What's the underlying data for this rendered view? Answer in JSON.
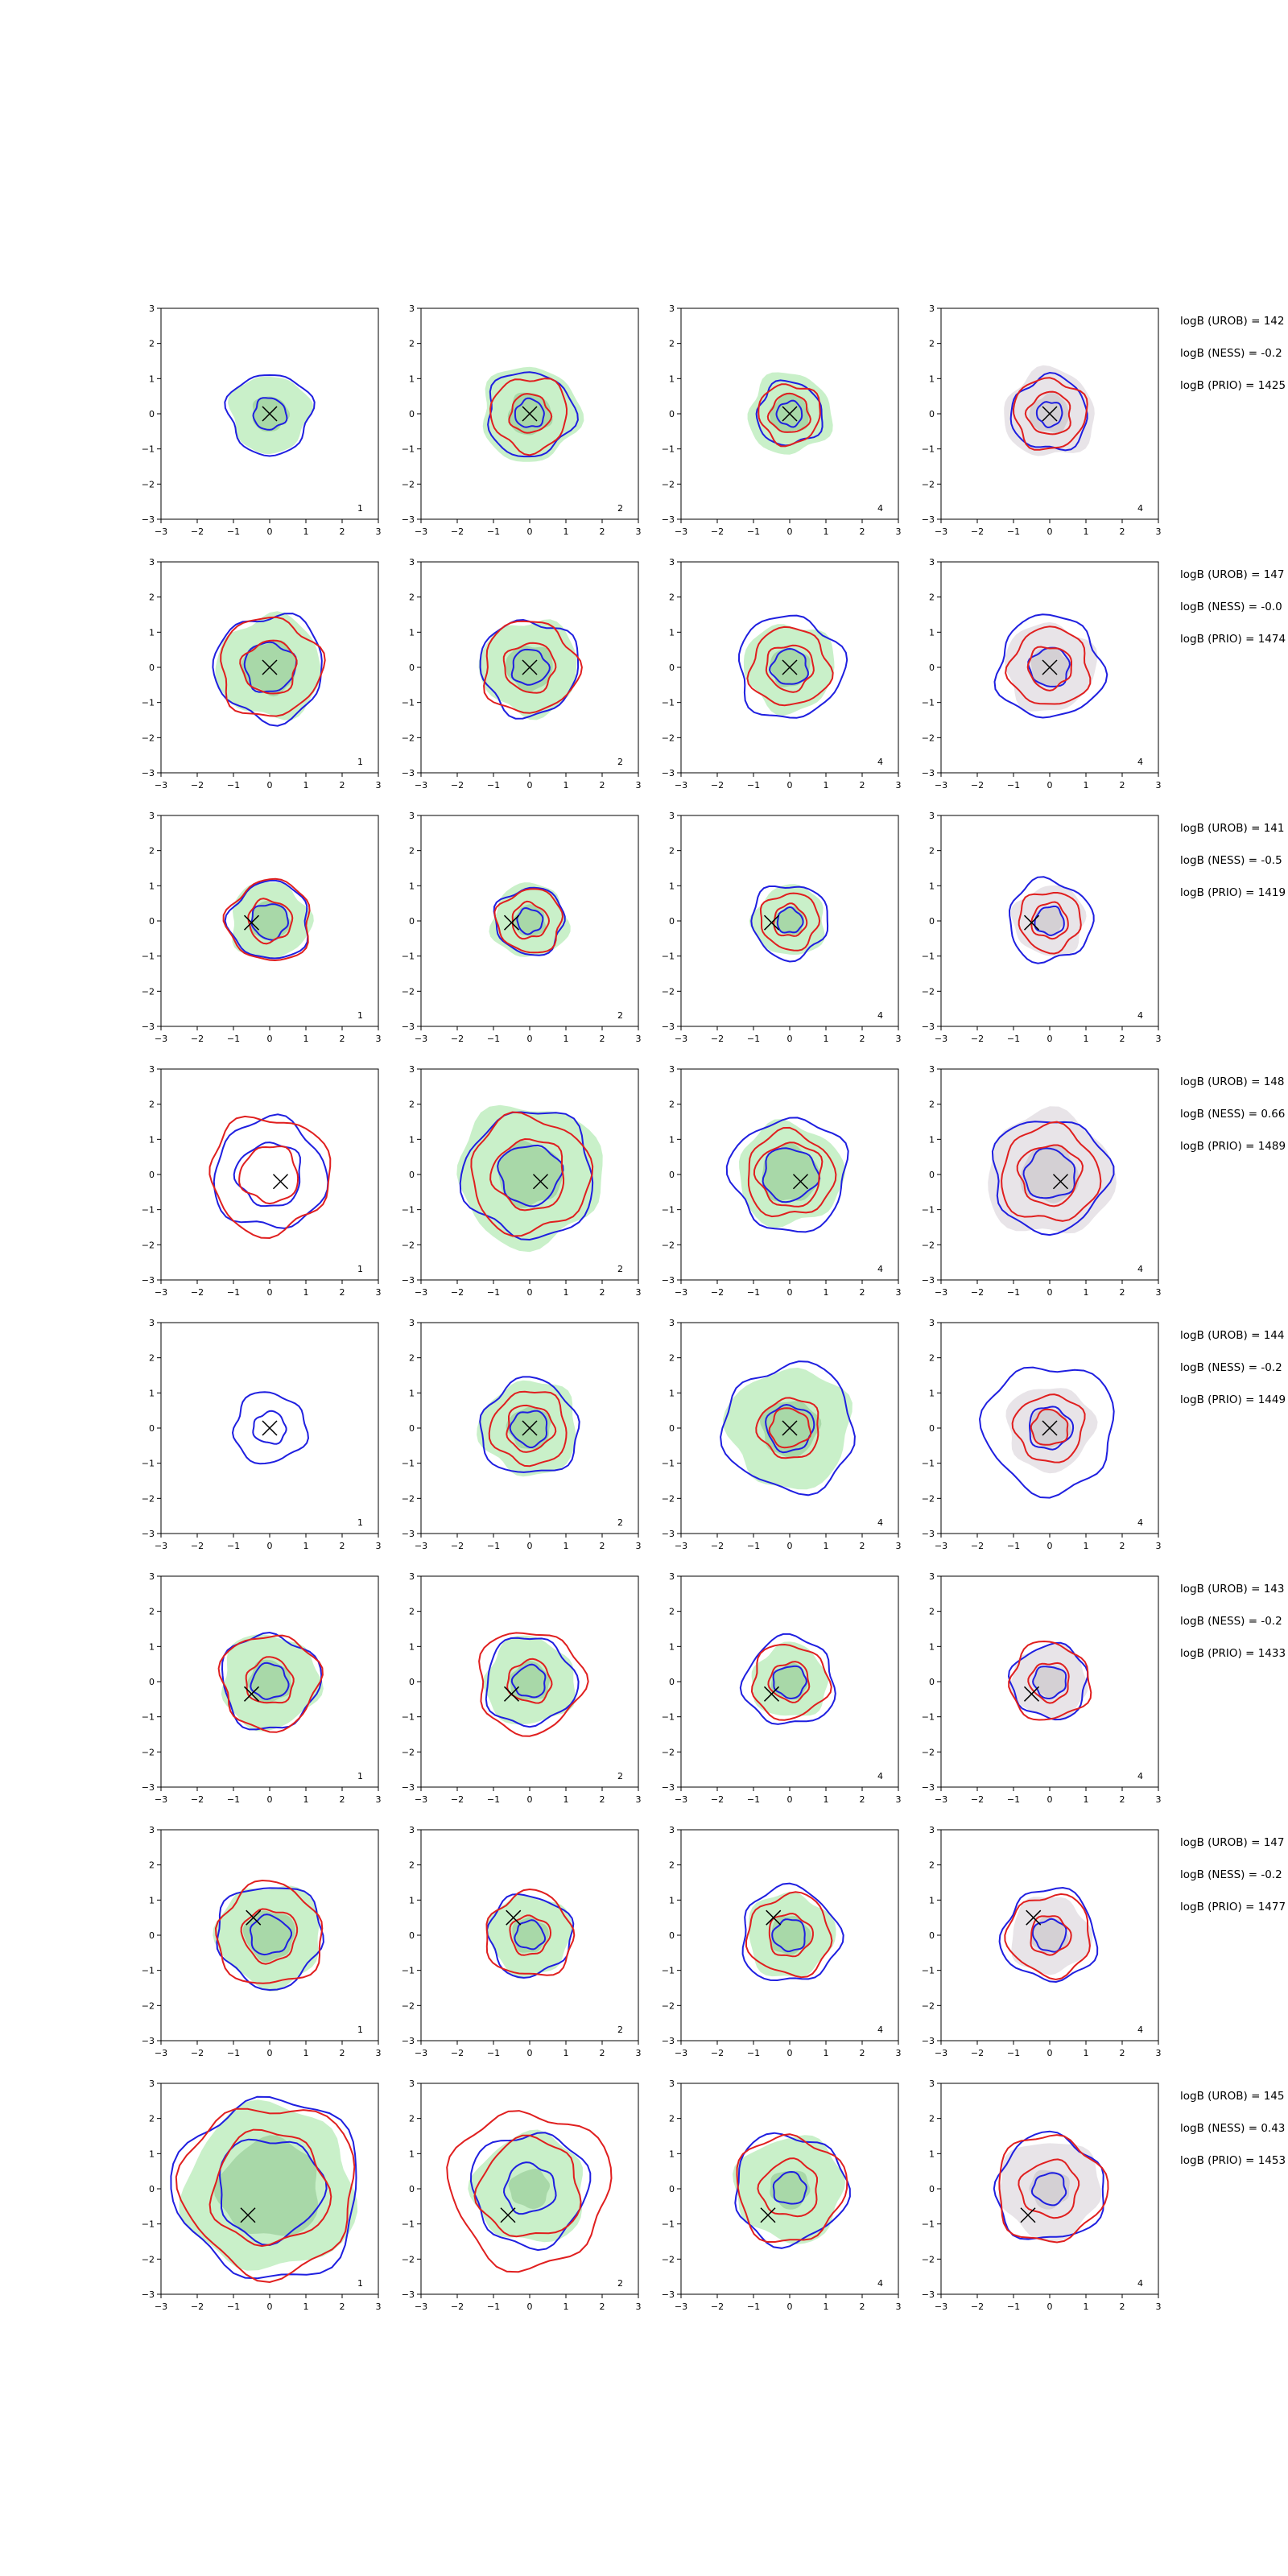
{
  "figure": {
    "grid_rows": 8,
    "grid_cols": 4,
    "colors": {
      "blue_contour": "#1f1fe0",
      "red_contour": "#e01f1f",
      "green_fill": "#c9f0c9",
      "green_fill_dark": "#a8d8a8",
      "gray_fill": "#e8e4e8",
      "gray_fill_dark": "#d4d0d4",
      "marker": "#000000"
    }
  },
  "chart_data": {
    "type": "contour",
    "xlim": [
      -3,
      3
    ],
    "ylim": [
      -3,
      3
    ],
    "x_ticks": [
      "−3",
      "−2",
      "−1",
      "0",
      "1",
      "2",
      "3"
    ],
    "y_ticks": [
      "3",
      "2",
      "1",
      "0",
      "−1",
      "−2",
      "−3"
    ],
    "column_labels": [
      "1",
      "2",
      "4",
      "4"
    ],
    "column_fill": [
      "green",
      "green",
      "green",
      "gray"
    ],
    "rows": [
      {
        "marker": [
          0.0,
          0.0
        ],
        "logB": [
          "logB (UROB) = 142",
          "logB (NESS) = -0.2",
          "logB (PRIO) = 1425"
        ],
        "panels": [
          {
            "fill": [
              1.1,
              0.5
            ],
            "blue": [
              1.15,
              0.45
            ],
            "red": []
          },
          {
            "fill": [
              1.35,
              0.6
            ],
            "blue": [
              1.2,
              0.4
            ],
            "red": [
              1.05,
              0.55
            ]
          },
          {
            "fill": [
              1.15,
              0.55
            ],
            "blue": [
              0.9,
              0.35
            ],
            "red": [
              0.85,
              0.55
            ]
          },
          {
            "fill": [
              1.25,
              0.55
            ],
            "blue": [
              1.05,
              0.35
            ],
            "red": [
              1.0,
              0.6
            ]
          }
        ]
      },
      {
        "marker": [
          0.0,
          0.0
        ],
        "logB": [
          "logB (UROB) = 147",
          "logB (NESS) = -0.0",
          "logB (PRIO) = 1474"
        ],
        "panels": [
          {
            "fill": [
              1.45,
              0.75
            ],
            "blue": [
              1.5,
              0.7
            ],
            "red": [
              1.4,
              0.75
            ]
          },
          {
            "fill": [
              1.35,
              0.65
            ],
            "blue": [
              1.35,
              0.5
            ],
            "red": [
              1.3,
              0.7
            ]
          },
          {
            "fill": [
              1.25,
              0.55
            ],
            "blue": [
              1.45,
              0.5
            ],
            "red": [
              1.1,
              0.65
            ]
          },
          {
            "fill": [
              1.25,
              0.55
            ],
            "blue": [
              1.45,
              0.55
            ],
            "red": [
              1.1,
              0.6
            ]
          }
        ]
      },
      {
        "marker": [
          -0.5,
          -0.05
        ],
        "logB": [
          "logB (UROB) = 141",
          "logB (NESS) = -0.5",
          "logB (PRIO) = 1419"
        ],
        "panels": [
          {
            "fill": [
              1.1,
              0.55
            ],
            "blue": [
              1.1,
              0.5
            ],
            "red": [
              1.15,
              0.6
            ]
          },
          {
            "fill": [
              1.05,
              0.45
            ],
            "blue": [
              0.95,
              0.35
            ],
            "red": [
              0.9,
              0.5
            ]
          },
          {
            "fill": [
              1.0,
              0.4
            ],
            "blue": [
              1.05,
              0.35
            ],
            "red": [
              0.8,
              0.45
            ]
          },
          {
            "fill": [
              1.0,
              0.4
            ],
            "blue": [
              1.15,
              0.4
            ],
            "red": [
              0.85,
              0.5
            ]
          }
        ]
      },
      {
        "marker": [
          0.3,
          -0.2
        ],
        "logB": [
          "logB (UROB) = 148",
          "logB (NESS) = 0.66",
          "logB (PRIO) = 1489"
        ],
        "panels": [
          {
            "fill": [],
            "blue": [
              1.55,
              0.9
            ],
            "red": [
              1.65,
              0.8
            ]
          },
          {
            "fill": [
              2.0,
              0.9
            ],
            "blue": [
              1.8,
              0.85
            ],
            "red": [
              1.65,
              1.0
            ]
          },
          {
            "fill": [
              1.45,
              0.8
            ],
            "blue": [
              1.6,
              0.75
            ],
            "red": [
              1.2,
              0.9
            ]
          },
          {
            "fill": [
              1.75,
              0.8
            ],
            "blue": [
              1.6,
              0.7
            ],
            "red": [
              1.35,
              0.85
            ]
          }
        ]
      },
      {
        "marker": [
          0.0,
          0.0
        ],
        "logB": [
          "logB (UROB) = 144",
          "logB (NESS) = -0.2",
          "logB (PRIO) = 1449"
        ],
        "panels": [
          {
            "fill": [],
            "blue": [
              1.0,
              0.45
            ],
            "red": []
          },
          {
            "fill": [
              1.35,
              0.6
            ],
            "blue": [
              1.35,
              0.5
            ],
            "red": [
              1.05,
              0.65
            ]
          },
          {
            "fill": [
              1.7,
              0.8
            ],
            "blue": [
              1.8,
              0.65
            ],
            "red": [
              0.85,
              0.55
            ]
          },
          {
            "fill": [
              1.2,
              0.55
            ],
            "blue": [
              1.8,
              0.6
            ],
            "red": [
              0.95,
              0.5
            ]
          }
        ]
      },
      {
        "marker": [
          -0.5,
          -0.35
        ],
        "logB": [
          "logB (UROB) = 143",
          "logB (NESS) = -0.2",
          "logB (PRIO) = 1433"
        ],
        "panels": [
          {
            "fill": [
              1.35,
              0.6
            ],
            "blue": [
              1.35,
              0.5
            ],
            "red": [
              1.35,
              0.65
            ]
          },
          {
            "fill": [
              1.25,
              0.55
            ],
            "blue": [
              1.25,
              0.45
            ],
            "red": [
              1.45,
              0.6
            ]
          },
          {
            "fill": [
              1.05,
              0.5
            ],
            "blue": [
              1.25,
              0.45
            ],
            "red": [
              1.05,
              0.55
            ]
          },
          {
            "fill": [
              1.05,
              0.45
            ],
            "blue": [
              1.05,
              0.45
            ],
            "red": [
              1.1,
              0.55
            ]
          }
        ]
      },
      {
        "marker": [
          -0.45,
          0.5
        ],
        "logB": [
          "logB (UROB) = 147",
          "logB (NESS) = -0.2",
          "logB (PRIO) = 1477"
        ],
        "panels": [
          {
            "fill": [
              1.45,
              0.7
            ],
            "blue": [
              1.45,
              0.55
            ],
            "red": [
              1.45,
              0.75
            ]
          },
          {
            "fill": [
              1.15,
              0.5
            ],
            "blue": [
              1.15,
              0.4
            ],
            "red": [
              1.2,
              0.55
            ]
          },
          {
            "fill": [
              1.2,
              0.55
            ],
            "blue": [
              1.35,
              0.45
            ],
            "red": [
              1.15,
              0.6
            ]
          },
          {
            "fill": [
              1.1,
              0.5
            ],
            "blue": [
              1.3,
              0.45
            ],
            "red": [
              1.15,
              0.55
            ]
          }
        ]
      },
      {
        "marker": [
          -0.6,
          -0.75
        ],
        "logB": [
          "logB (UROB) = 145",
          "logB (NESS) = 0.43",
          "logB (PRIO) = 1453"
        ],
        "panels": [
          {
            "fill": [
              2.35,
              1.4
            ],
            "blue": [
              2.55,
              1.45
            ],
            "red": [
              2.4,
              1.6
            ]
          },
          {
            "fill": [
              1.55,
              0.55
            ],
            "blue": [
              1.6,
              0.7
            ],
            "red": [
              2.2,
              1.4
            ]
          },
          {
            "fill": [
              1.5,
              0.55
            ],
            "blue": [
              1.55,
              0.45
            ],
            "red": [
              1.5,
              0.8
            ]
          },
          {
            "fill": [
              1.4,
              0.55
            ],
            "blue": [
              1.5,
              0.45
            ],
            "red": [
              1.5,
              0.8
            ]
          }
        ]
      }
    ]
  }
}
